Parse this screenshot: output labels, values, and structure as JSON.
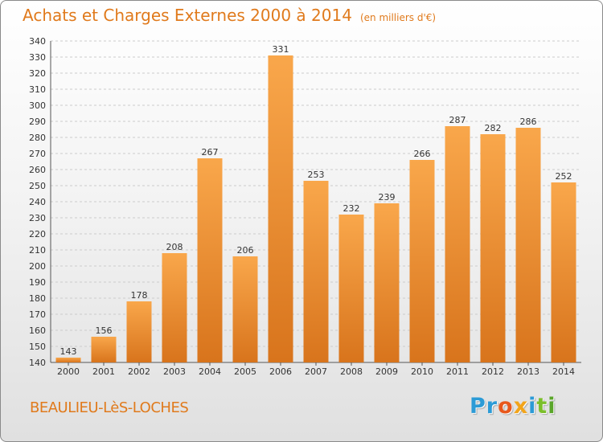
{
  "title": "Achats et Charges Externes 2000 à 2014",
  "unit_note": "(en milliers d'€)",
  "commune": "BEAULIEU-LèS-LOCHES",
  "brand": {
    "letters": [
      "P",
      "r",
      "o",
      "x",
      "i",
      "t",
      "i"
    ]
  },
  "colors": {
    "bar_light": "#f9a74b",
    "bar_dark": "#d8741c",
    "title": "#e07a1c",
    "grid": "#cccccc"
  },
  "chart_data": {
    "type": "bar",
    "title": "Achats et Charges Externes 2000 à 2014",
    "subtitle": "(en milliers d'€)",
    "xlabel": "",
    "ylabel": "",
    "categories": [
      "2000",
      "2001",
      "2002",
      "2003",
      "2004",
      "2005",
      "2006",
      "2007",
      "2008",
      "2009",
      "2010",
      "2011",
      "2012",
      "2013",
      "2014"
    ],
    "values": [
      143,
      156,
      178,
      208,
      267,
      206,
      331,
      253,
      232,
      239,
      266,
      287,
      282,
      286,
      252
    ],
    "ylim": [
      140,
      340
    ],
    "yticks": [
      140,
      150,
      160,
      170,
      180,
      190,
      200,
      210,
      220,
      230,
      240,
      250,
      260,
      270,
      280,
      290,
      300,
      310,
      320,
      330,
      340
    ],
    "grid": true
  }
}
